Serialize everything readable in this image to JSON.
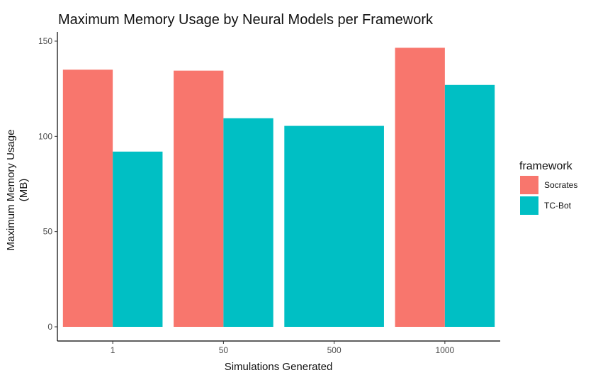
{
  "chart_data": {
    "type": "bar",
    "title": "Maximum Memory Usage by Neural Models per Framework",
    "xlabel": "Simulations Generated",
    "ylabel_lines": [
      "Maximum Memory Usage",
      "(MB)"
    ],
    "categories": [
      "1",
      "50",
      "500",
      "1000"
    ],
    "ylim": [
      0,
      152
    ],
    "yticks": [
      0,
      50,
      100,
      150
    ],
    "grid": false,
    "legend": {
      "title": "framework",
      "placement": "right"
    },
    "series": [
      {
        "name": "Socrates",
        "color": "#F8766D",
        "values": [
          135,
          134.5,
          null,
          146.5
        ]
      },
      {
        "name": "TC-Bot",
        "color": "#00BFC4",
        "values": [
          92,
          109.5,
          105.5,
          127
        ]
      }
    ]
  }
}
